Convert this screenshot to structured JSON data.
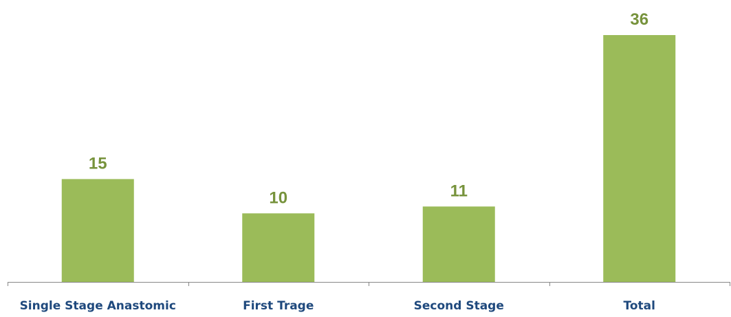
{
  "chart_data": {
    "type": "bar",
    "categories": [
      "Single Stage Anastomic",
      "First Trage",
      "Second Stage",
      "Total"
    ],
    "values": [
      15,
      10,
      11,
      36
    ],
    "title": "",
    "xlabel": "",
    "ylabel": "",
    "ylim": [
      0,
      36
    ],
    "grid": false,
    "legend": "none",
    "data_labels": true
  },
  "colors": {
    "bar": "#9bbb59",
    "value_label": "#77933c",
    "category_label": "#1f497d",
    "axis": "#868686"
  }
}
